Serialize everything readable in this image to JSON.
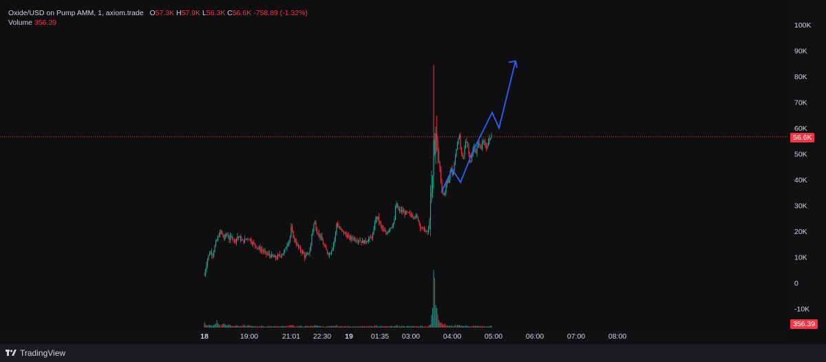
{
  "legend": {
    "symbol": "Oxide/USD on Pump AMM, 1, axiom.trade",
    "open_label": "O",
    "open": "57.3K",
    "high_label": "H",
    "high": "57.9K",
    "low_label": "L",
    "low": "56.3K",
    "close_label": "C",
    "close": "56.6K",
    "change": "-758.89 (-1.32%)",
    "volume_label": "Volume",
    "volume": "356.39"
  },
  "footer": {
    "brand": "TradingView"
  },
  "colors": {
    "up": "#22ab94",
    "down": "#f23645",
    "background": "#0f0f12",
    "projection": "#2962ff",
    "text": "#d1d4dc"
  },
  "chart_data": {
    "type": "candlestick",
    "title": "Oxide/USD on Pump AMM, 1, axiom.trade",
    "y_ticks": [
      "100K",
      "90K",
      "80K",
      "70K",
      "60K",
      "50K",
      "40K",
      "30K",
      "20K",
      "10K",
      "0",
      "-10K"
    ],
    "y_tick_values": [
      100000,
      90000,
      80000,
      70000,
      60000,
      50000,
      40000,
      30000,
      20000,
      10000,
      0,
      -10000
    ],
    "ylim": [
      -12000,
      104000
    ],
    "x_ticks": [
      {
        "label": "18",
        "bold": true,
        "t": 0
      },
      {
        "label": "19:00",
        "bold": false,
        "t": 65
      },
      {
        "label": "21:01",
        "bold": false,
        "t": 126
      },
      {
        "label": "22:30",
        "bold": false,
        "t": 171
      },
      {
        "label": "19",
        "bold": true,
        "t": 210
      },
      {
        "label": "01:35",
        "bold": false,
        "t": 255
      },
      {
        "label": "03:00",
        "bold": false,
        "t": 300
      },
      {
        "label": "04:00",
        "bold": false,
        "t": 360
      },
      {
        "label": "05:00",
        "bold": false,
        "t": 420
      },
      {
        "label": "06:00",
        "bold": false,
        "t": 480
      },
      {
        "label": "07:00",
        "bold": false,
        "t": 540
      },
      {
        "label": "08:00",
        "bold": false,
        "t": 600
      }
    ],
    "last_price": 56600,
    "last_price_label": "56.6K",
    "last_volume_label": "356.39",
    "price_path": [
      [
        0,
        3000
      ],
      [
        4,
        9000
      ],
      [
        8,
        12000
      ],
      [
        12,
        11000
      ],
      [
        16,
        15000
      ],
      [
        20,
        18000
      ],
      [
        24,
        20000
      ],
      [
        28,
        17000
      ],
      [
        32,
        19000
      ],
      [
        36,
        17000
      ],
      [
        40,
        18000
      ],
      [
        44,
        16000
      ],
      [
        48,
        18000
      ],
      [
        52,
        17000
      ],
      [
        56,
        16000
      ],
      [
        60,
        17000
      ],
      [
        64,
        17500
      ],
      [
        68,
        16000
      ],
      [
        72,
        15000
      ],
      [
        76,
        14000
      ],
      [
        80,
        13000
      ],
      [
        84,
        12500
      ],
      [
        88,
        11500
      ],
      [
        92,
        11000
      ],
      [
        96,
        10500
      ],
      [
        100,
        10000
      ],
      [
        104,
        9500
      ],
      [
        108,
        10500
      ],
      [
        112,
        11000
      ],
      [
        116,
        12000
      ],
      [
        120,
        15000
      ],
      [
        124,
        17000
      ],
      [
        126,
        21000
      ],
      [
        130,
        17000
      ],
      [
        134,
        15000
      ],
      [
        138,
        13000
      ],
      [
        142,
        12000
      ],
      [
        146,
        10000
      ],
      [
        150,
        11000
      ],
      [
        154,
        13000
      ],
      [
        156,
        19000
      ],
      [
        160,
        24000
      ],
      [
        163,
        20000
      ],
      [
        166,
        19000
      ],
      [
        170,
        17000
      ],
      [
        174,
        14000
      ],
      [
        178,
        12000
      ],
      [
        182,
        11000
      ],
      [
        186,
        14000
      ],
      [
        190,
        18000
      ],
      [
        192,
        23000
      ],
      [
        196,
        21000
      ],
      [
        200,
        20000
      ],
      [
        204,
        19000
      ],
      [
        208,
        18000
      ],
      [
        212,
        17000
      ],
      [
        216,
        17500
      ],
      [
        220,
        16500
      ],
      [
        224,
        16800
      ],
      [
        228,
        16000
      ],
      [
        232,
        15800
      ],
      [
        236,
        16500
      ],
      [
        240,
        17000
      ],
      [
        244,
        18000
      ],
      [
        246,
        20000
      ],
      [
        248,
        25000
      ],
      [
        252,
        25000
      ],
      [
        256,
        22000
      ],
      [
        260,
        20000
      ],
      [
        264,
        19000
      ],
      [
        268,
        21000
      ],
      [
        272,
        22000
      ],
      [
        276,
        24000
      ],
      [
        278,
        31000
      ],
      [
        282,
        28000
      ],
      [
        286,
        28000
      ],
      [
        290,
        27000
      ],
      [
        294,
        27000
      ],
      [
        298,
        26500
      ],
      [
        302,
        26000
      ],
      [
        306,
        26000
      ],
      [
        310,
        25000
      ],
      [
        313,
        22000
      ],
      [
        316,
        21000
      ],
      [
        320,
        20500
      ],
      [
        323,
        19000
      ],
      [
        326,
        21000
      ],
      [
        328,
        28000
      ],
      [
        330,
        34000
      ],
      [
        332,
        42000
      ],
      [
        333,
        55000
      ],
      [
        334,
        46000
      ],
      [
        336,
        60000
      ],
      [
        338,
        52000
      ],
      [
        340,
        48000
      ],
      [
        342,
        44000
      ],
      [
        344,
        38000
      ],
      [
        346,
        35000
      ],
      [
        348,
        34000
      ],
      [
        350,
        36000
      ],
      [
        352,
        40000
      ],
      [
        354,
        38000
      ],
      [
        356,
        42000
      ],
      [
        358,
        45000
      ],
      [
        360,
        42000
      ],
      [
        362,
        44000
      ],
      [
        364,
        48000
      ],
      [
        366,
        52000
      ],
      [
        368,
        55000
      ],
      [
        370,
        58000
      ],
      [
        372,
        52000
      ],
      [
        374,
        49000
      ],
      [
        376,
        48000
      ],
      [
        378,
        52000
      ],
      [
        380,
        56000
      ],
      [
        382,
        54000
      ],
      [
        384,
        50000
      ],
      [
        386,
        47000
      ],
      [
        388,
        48000
      ],
      [
        390,
        51000
      ],
      [
        392,
        53000
      ],
      [
        394,
        50000
      ],
      [
        396,
        52000
      ],
      [
        398,
        55000
      ],
      [
        400,
        53000
      ],
      [
        402,
        52000
      ],
      [
        404,
        55000
      ],
      [
        406,
        56000
      ],
      [
        408,
        53000
      ],
      [
        410,
        51000
      ],
      [
        412,
        54000
      ],
      [
        414,
        56000
      ],
      [
        416,
        57000
      ],
      [
        418,
        56600
      ]
    ],
    "volume_path": [
      [
        0,
        7
      ],
      [
        4,
        4
      ],
      [
        8,
        3
      ],
      [
        12,
        3
      ],
      [
        16,
        9
      ],
      [
        18,
        12
      ],
      [
        20,
        4
      ],
      [
        24,
        3
      ],
      [
        28,
        5
      ],
      [
        32,
        3
      ],
      [
        36,
        4
      ],
      [
        40,
        3
      ],
      [
        44,
        2
      ],
      [
        48,
        3
      ],
      [
        52,
        2
      ],
      [
        56,
        4
      ],
      [
        60,
        2
      ],
      [
        64,
        3
      ],
      [
        68,
        2
      ],
      [
        72,
        2
      ],
      [
        76,
        2
      ],
      [
        80,
        2
      ],
      [
        84,
        2
      ],
      [
        88,
        2
      ],
      [
        92,
        2
      ],
      [
        96,
        3
      ],
      [
        100,
        2
      ],
      [
        104,
        2
      ],
      [
        108,
        2
      ],
      [
        112,
        2
      ],
      [
        116,
        2
      ],
      [
        120,
        3
      ],
      [
        124,
        3
      ],
      [
        126,
        4
      ],
      [
        130,
        2
      ],
      [
        134,
        2
      ],
      [
        138,
        2
      ],
      [
        142,
        2
      ],
      [
        146,
        2
      ],
      [
        150,
        2
      ],
      [
        154,
        2
      ],
      [
        156,
        3
      ],
      [
        160,
        4
      ],
      [
        166,
        2
      ],
      [
        170,
        2
      ],
      [
        174,
        2
      ],
      [
        178,
        2
      ],
      [
        182,
        2
      ],
      [
        186,
        2
      ],
      [
        190,
        3
      ],
      [
        192,
        3
      ],
      [
        196,
        2
      ],
      [
        200,
        2
      ],
      [
        204,
        2
      ],
      [
        208,
        2
      ],
      [
        212,
        2
      ],
      [
        216,
        2
      ],
      [
        220,
        2
      ],
      [
        224,
        2
      ],
      [
        228,
        2
      ],
      [
        232,
        2
      ],
      [
        236,
        2
      ],
      [
        240,
        2
      ],
      [
        244,
        2
      ],
      [
        248,
        3
      ],
      [
        252,
        2
      ],
      [
        256,
        2
      ],
      [
        260,
        2
      ],
      [
        264,
        2
      ],
      [
        268,
        2
      ],
      [
        272,
        2
      ],
      [
        276,
        2
      ],
      [
        278,
        4
      ],
      [
        282,
        2
      ],
      [
        286,
        2
      ],
      [
        290,
        2
      ],
      [
        294,
        2
      ],
      [
        298,
        2
      ],
      [
        302,
        2
      ],
      [
        306,
        2
      ],
      [
        310,
        2
      ],
      [
        313,
        2
      ],
      [
        316,
        2
      ],
      [
        320,
        2
      ],
      [
        323,
        2
      ],
      [
        326,
        2
      ],
      [
        328,
        5
      ],
      [
        330,
        15
      ],
      [
        331,
        40
      ],
      [
        332,
        25
      ],
      [
        333,
        118
      ],
      [
        334,
        45
      ],
      [
        335,
        88
      ],
      [
        336,
        32
      ],
      [
        338,
        20
      ],
      [
        340,
        12
      ],
      [
        342,
        9
      ],
      [
        344,
        6
      ],
      [
        346,
        8
      ],
      [
        348,
        5
      ],
      [
        350,
        4
      ],
      [
        352,
        3
      ],
      [
        356,
        3
      ],
      [
        360,
        2
      ],
      [
        364,
        4
      ],
      [
        368,
        3
      ],
      [
        372,
        3
      ],
      [
        376,
        2
      ],
      [
        380,
        3
      ],
      [
        384,
        2
      ],
      [
        388,
        2
      ],
      [
        392,
        3
      ],
      [
        396,
        2
      ],
      [
        400,
        2
      ],
      [
        404,
        2
      ],
      [
        408,
        2
      ],
      [
        412,
        2
      ],
      [
        416,
        2
      ],
      [
        418,
        2
      ]
    ],
    "projection": [
      [
        344,
        35000
      ],
      [
        360,
        44000
      ],
      [
        372,
        39000
      ],
      [
        390,
        51000
      ],
      [
        418,
        66000
      ],
      [
        428,
        60000
      ],
      [
        452,
        86000
      ]
    ]
  }
}
